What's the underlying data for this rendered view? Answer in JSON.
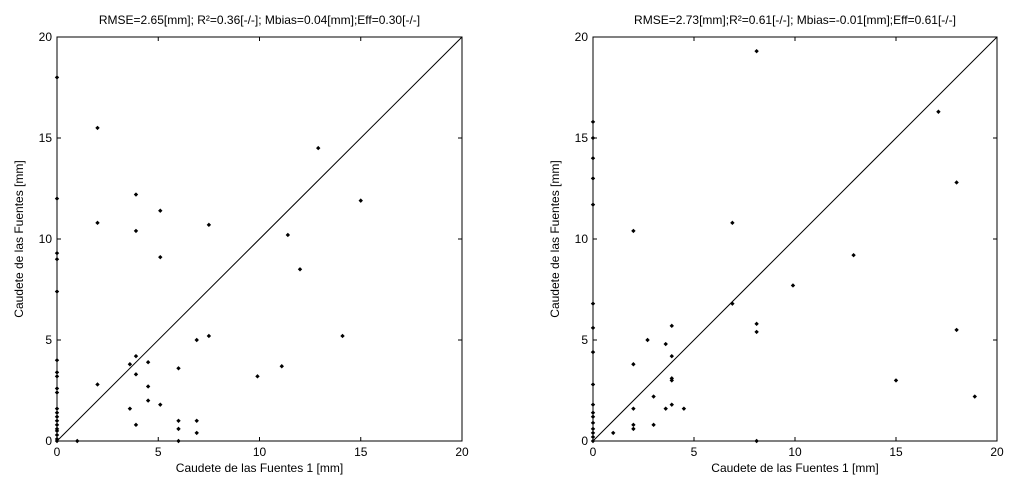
{
  "chart_data": [
    {
      "type": "scatter",
      "title": "RMSE=2.65[mm]; R²=0.36[-/-]; Mbias=0.04[mm];Eff=0.30[-/-]",
      "xlabel": "Caudete de las Fuentes 1 [mm]",
      "ylabel": "Caudete de las Fuentes [mm]",
      "xlim": [
        0,
        20
      ],
      "ylim": [
        0,
        20
      ],
      "xticks": [
        0,
        5,
        10,
        15,
        20
      ],
      "yticks": [
        0,
        5,
        10,
        15,
        20
      ],
      "reference_line": "1:1",
      "grid": false,
      "color": "#000000",
      "points": [
        [
          0,
          18.0
        ],
        [
          0,
          12.0
        ],
        [
          0,
          9.3
        ],
        [
          0,
          9.0
        ],
        [
          0,
          7.4
        ],
        [
          0,
          4.0
        ],
        [
          0,
          3.4
        ],
        [
          0,
          3.2
        ],
        [
          0,
          2.6
        ],
        [
          0,
          2.4
        ],
        [
          0,
          1.6
        ],
        [
          0,
          1.4
        ],
        [
          0,
          1.2
        ],
        [
          0,
          1.0
        ],
        [
          0,
          0.8
        ],
        [
          0,
          0.6
        ],
        [
          0,
          0.5
        ],
        [
          0,
          0.3
        ],
        [
          0,
          0.1
        ],
        [
          0,
          0.0
        ],
        [
          1.0,
          0.0
        ],
        [
          2.0,
          15.5
        ],
        [
          2.0,
          10.8
        ],
        [
          2.0,
          2.8
        ],
        [
          3.6,
          3.8
        ],
        [
          3.6,
          1.6
        ],
        [
          3.9,
          12.2
        ],
        [
          3.9,
          10.4
        ],
        [
          3.9,
          4.2
        ],
        [
          3.9,
          3.3
        ],
        [
          3.9,
          0.8
        ],
        [
          4.5,
          3.9
        ],
        [
          4.5,
          2.7
        ],
        [
          4.5,
          2.0
        ],
        [
          5.1,
          11.4
        ],
        [
          5.1,
          9.1
        ],
        [
          5.1,
          1.8
        ],
        [
          6.0,
          3.6
        ],
        [
          6.0,
          1.0
        ],
        [
          6.0,
          0.6
        ],
        [
          6.0,
          0.0
        ],
        [
          6.9,
          5.0
        ],
        [
          6.9,
          1.0
        ],
        [
          6.9,
          0.4
        ],
        [
          7.5,
          10.7
        ],
        [
          7.5,
          5.2
        ],
        [
          9.9,
          3.2
        ],
        [
          11.1,
          3.7
        ],
        [
          11.4,
          10.2
        ],
        [
          12.0,
          8.5
        ],
        [
          12.9,
          14.5
        ],
        [
          14.1,
          5.2
        ],
        [
          15.0,
          11.9
        ]
      ]
    },
    {
      "type": "scatter",
      "title": "RMSE=2.73[mm];R²=0.61[-/-]; Mbias=-0.01[mm];Eff=0.61[-/-]",
      "xlabel": "Caudete de las Fuentes 1 [mm]",
      "ylabel": "Caudete de las Fuentes [mm]",
      "xlim": [
        0,
        20
      ],
      "ylim": [
        0,
        20
      ],
      "xticks": [
        0,
        5,
        10,
        15,
        20
      ],
      "yticks": [
        0,
        5,
        10,
        15,
        20
      ],
      "reference_line": "1:1",
      "grid": false,
      "color": "#000000",
      "points": [
        [
          0,
          15.8
        ],
        [
          0,
          15.0
        ],
        [
          0,
          14.0
        ],
        [
          0,
          13.0
        ],
        [
          0,
          11.7
        ],
        [
          0,
          6.8
        ],
        [
          0,
          5.6
        ],
        [
          0,
          4.4
        ],
        [
          0,
          2.8
        ],
        [
          0,
          1.8
        ],
        [
          0,
          1.4
        ],
        [
          0,
          1.2
        ],
        [
          0,
          0.9
        ],
        [
          0,
          0.6
        ],
        [
          0,
          0.4
        ],
        [
          0,
          0.2
        ],
        [
          0,
          0.0
        ],
        [
          1.0,
          0.4
        ],
        [
          2.0,
          10.4
        ],
        [
          2.0,
          3.8
        ],
        [
          2.0,
          1.6
        ],
        [
          2.0,
          0.8
        ],
        [
          2.0,
          0.6
        ],
        [
          2.7,
          5.0
        ],
        [
          3.0,
          2.2
        ],
        [
          3.0,
          0.8
        ],
        [
          3.6,
          4.8
        ],
        [
          3.6,
          1.6
        ],
        [
          3.9,
          5.7
        ],
        [
          3.9,
          4.2
        ],
        [
          3.9,
          3.1
        ],
        [
          3.9,
          3.0
        ],
        [
          3.9,
          1.8
        ],
        [
          4.5,
          1.6
        ],
        [
          6.9,
          10.8
        ],
        [
          6.9,
          6.8
        ],
        [
          8.1,
          19.3
        ],
        [
          8.1,
          5.8
        ],
        [
          8.1,
          5.4
        ],
        [
          8.1,
          0.0
        ],
        [
          9.9,
          7.7
        ],
        [
          12.9,
          9.2
        ],
        [
          15.0,
          3.0
        ],
        [
          17.1,
          16.3
        ],
        [
          18.0,
          12.8
        ],
        [
          18.0,
          5.5
        ],
        [
          18.9,
          2.2
        ]
      ]
    }
  ]
}
